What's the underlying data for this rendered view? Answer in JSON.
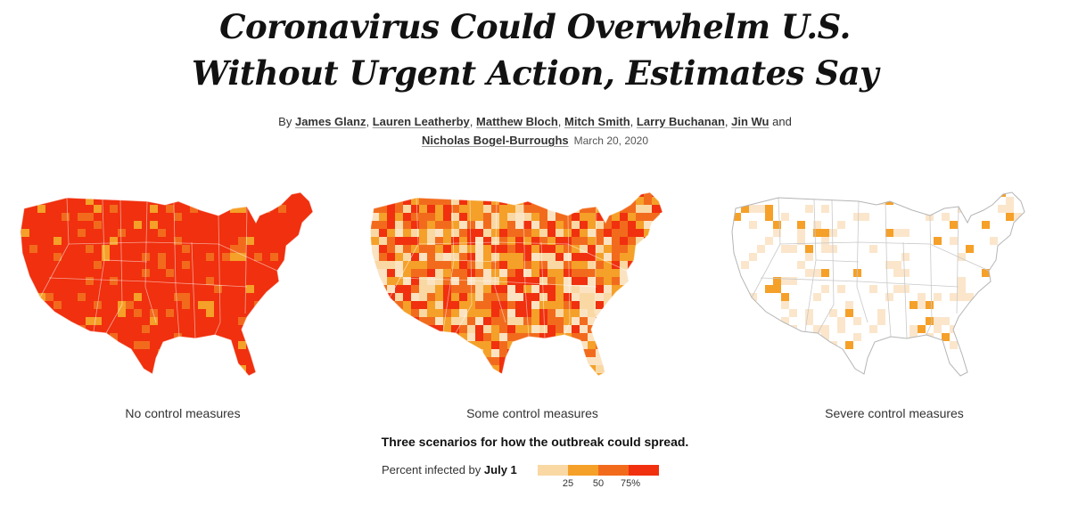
{
  "headline": {
    "line1": "Coronavirus Could Overwhelm U.S.",
    "line2": "Without Urgent Action, Estimates Say"
  },
  "byline": {
    "prefix": "By ",
    "authors": [
      "James Glanz",
      "Lauren Leatherby",
      "Matthew Bloch",
      "Mitch Smith",
      "Larry Buchanan",
      "Jin Wu",
      "Nicholas Bogel-Burroughs"
    ],
    "sep": ", ",
    "and": " and ",
    "date": "March 20, 2020"
  },
  "maps": [
    {
      "caption": "No control measures",
      "infected_level": "very-high"
    },
    {
      "caption": "Some control measures",
      "infected_level": "mixed"
    },
    {
      "caption": "Severe control measures",
      "infected_level": "low"
    }
  ],
  "summary": "Three scenarios for how the outbreak could spread.",
  "legend": {
    "prefix": "Percent infected by ",
    "date": "July 1",
    "ticks": [
      "25",
      "50",
      "75%"
    ],
    "colors": [
      "#f9d8a4",
      "#f5a028",
      "#f26b1d",
      "#f0300e"
    ]
  }
}
